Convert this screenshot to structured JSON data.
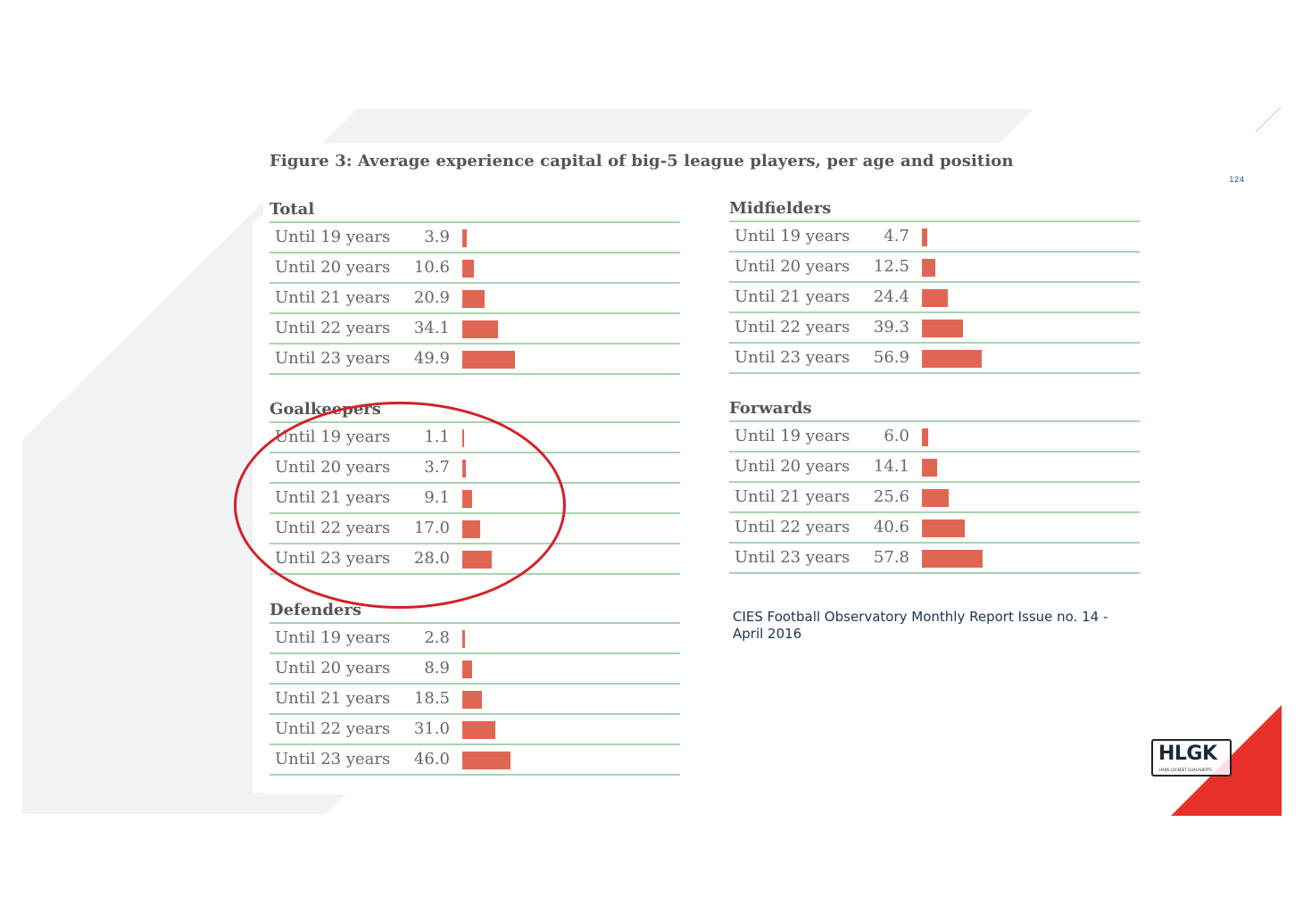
{
  "page_number": "124",
  "source_text": "CIES Football Observatory Monthly Report Issue no. 14 - April 2016",
  "logo": {
    "text": "HLGK",
    "subtext": "HANS LOCKEET GUALAHERTS"
  },
  "colors": {
    "bar": "#e06654",
    "rule": "#a9d3ae",
    "highlight_circle": "#d3202a",
    "brand_red": "#e8302a"
  },
  "chart_data": [
    {
      "type": "bar",
      "title": "Figure 3: Average experience capital of big-5 league players, per age and position",
      "panel": "Total",
      "categories": [
        "Until 19 years",
        "Until 20 years",
        "Until 21 years",
        "Until 22 years",
        "Until 23 years"
      ],
      "values": [
        3.9,
        10.6,
        20.9,
        34.1,
        49.9
      ],
      "value_labels": [
        "3.9",
        "10.6",
        "20.9",
        "34.1",
        "49.9"
      ]
    },
    {
      "type": "bar",
      "panel": "Midfielders",
      "categories": [
        "Until 19 years",
        "Until 20 years",
        "Until 21 years",
        "Until 22 years",
        "Until 23 years"
      ],
      "values": [
        4.7,
        12.5,
        24.4,
        39.3,
        56.9
      ],
      "value_labels": [
        "4.7",
        "12.5",
        "24.4",
        "39.3",
        "56.9"
      ]
    },
    {
      "type": "bar",
      "panel": "Goalkeepers",
      "categories": [
        "Until 19 years",
        "Until 20 years",
        "Until 21 years",
        "Until 22 years",
        "Until 23 years"
      ],
      "values": [
        1.1,
        3.7,
        9.1,
        17.0,
        28.0
      ],
      "value_labels": [
        "1.1",
        "3.7",
        "9.1",
        "17.0",
        "28.0"
      ]
    },
    {
      "type": "bar",
      "panel": "Forwards",
      "categories": [
        "Until 19 years",
        "Until 20 years",
        "Until 21 years",
        "Until 22 years",
        "Until 23 years"
      ],
      "values": [
        6.0,
        14.1,
        25.6,
        40.6,
        57.8
      ],
      "value_labels": [
        "6.0",
        "14.1",
        "25.6",
        "40.6",
        "57.8"
      ]
    },
    {
      "type": "bar",
      "panel": "Defenders",
      "categories": [
        "Until 19 years",
        "Until 20 years",
        "Until 21 years",
        "Until 22 years",
        "Until 23 years"
      ],
      "values": [
        2.8,
        8.9,
        18.5,
        31.0,
        46.0
      ],
      "value_labels": [
        "2.8",
        "8.9",
        "18.5",
        "31.0",
        "46.0"
      ]
    }
  ]
}
